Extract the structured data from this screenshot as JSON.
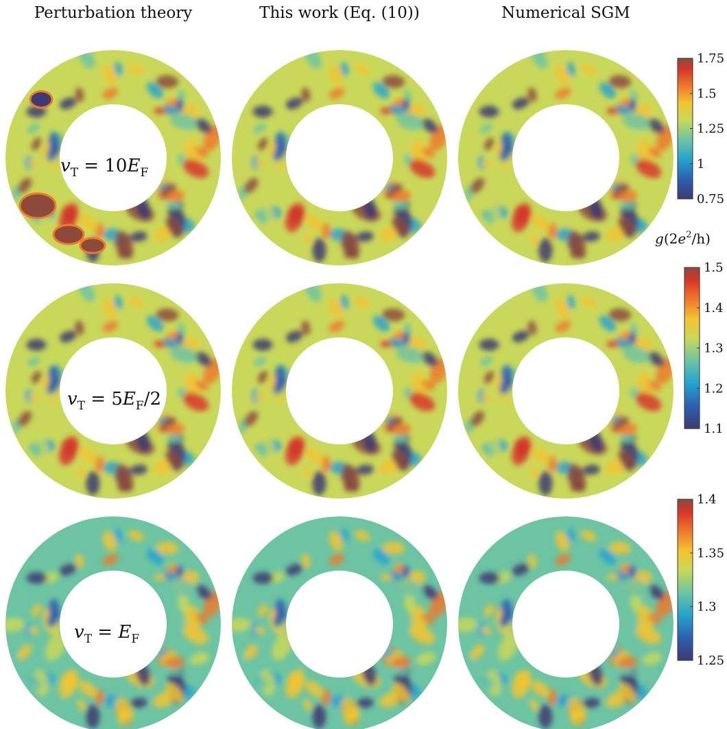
{
  "column_titles": [
    "Perturbation theory",
    "This work (Eq. (10))",
    "Numerical  SGM"
  ],
  "row_labels": [
    {
      "v": "v",
      "sub": "T",
      "rest": " = 10",
      "e": "E",
      "esub": "F",
      "tail": ""
    },
    {
      "v": "v",
      "sub": "T",
      "rest": " = 5",
      "e": "E",
      "esub": "F",
      "tail": "/2"
    },
    {
      "v": "v",
      "sub": "T",
      "rest": " = ",
      "e": "E",
      "esub": "F",
      "tail": ""
    }
  ],
  "colorbar_unit_label": {
    "g": "g",
    "open": "(2",
    "e": "e",
    "sup": "2",
    "close": "/h)"
  },
  "colorbars": [
    {
      "ticks": [
        "1.75",
        "1.5",
        "1.25",
        "1",
        "0.75"
      ]
    },
    {
      "ticks": [
        "1.5",
        "1.4",
        "1.3",
        "1.2",
        "1.1"
      ]
    },
    {
      "ticks": [
        "1.4",
        "1.35",
        "1.3",
        "1.25"
      ]
    }
  ],
  "colormap": [
    "#3d3b72",
    "#2d5fb0",
    "#24a3cf",
    "#6cc4a3",
    "#c9d85a",
    "#f2c431",
    "#ef7a2a",
    "#d83628",
    "#8b4a3c"
  ],
  "background_color": "#c9d85a",
  "hole_color": "#ffffff"
}
